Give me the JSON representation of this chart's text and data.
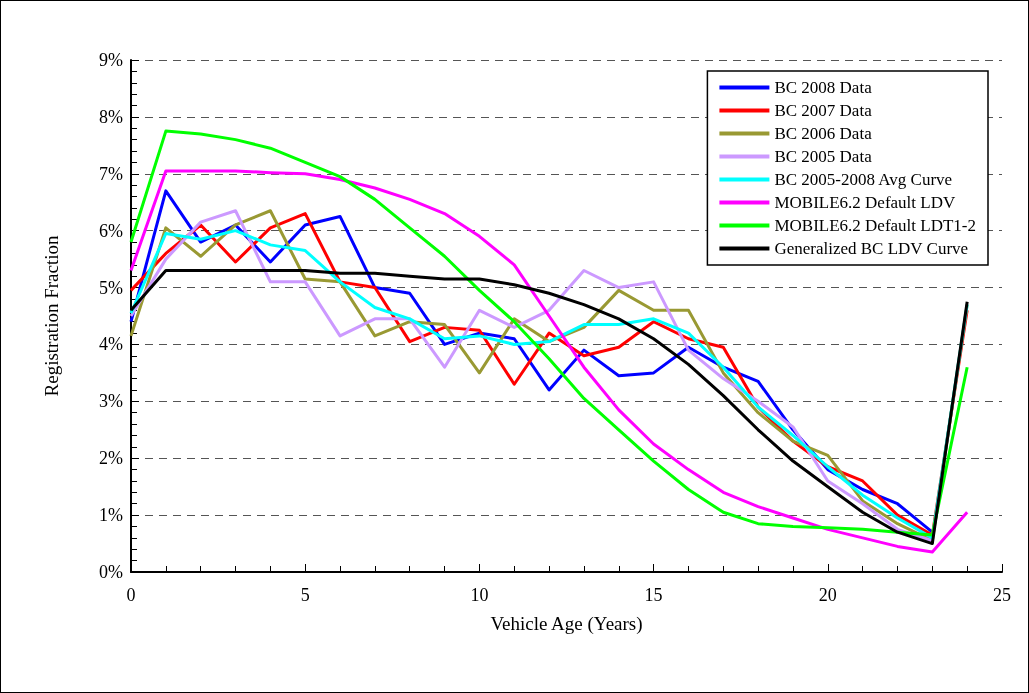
{
  "chart_data": {
    "type": "line",
    "xlabel": "Vehicle Age (Years)",
    "ylabel": "Registration Fraction",
    "x": [
      0,
      1,
      2,
      3,
      4,
      5,
      6,
      7,
      8,
      9,
      10,
      11,
      12,
      13,
      14,
      15,
      16,
      17,
      18,
      19,
      20,
      21,
      22,
      23,
      24
    ],
    "xlim": [
      0,
      25
    ],
    "xticks": [
      0,
      5,
      10,
      15,
      20,
      25
    ],
    "ylim": [
      0,
      9
    ],
    "yticks": [
      {
        "value": 0,
        "label": "0%"
      },
      {
        "value": 1,
        "label": "1%"
      },
      {
        "value": 2,
        "label": "2%"
      },
      {
        "value": 3,
        "label": "3%"
      },
      {
        "value": 4,
        "label": "4%"
      },
      {
        "value": 5,
        "label": "5%"
      },
      {
        "value": 6,
        "label": "6%"
      },
      {
        "value": 7,
        "label": "7%"
      },
      {
        "value": 8,
        "label": "8%"
      },
      {
        "value": 9,
        "label": "9%"
      }
    ],
    "grid": "y",
    "legend": "top right",
    "marker": "none",
    "line_style": "solid",
    "series": [
      {
        "name": "BC 2008 Data",
        "color": "#0000ff",
        "values": [
          4.4,
          6.7,
          5.8,
          6.1,
          5.45,
          6.1,
          6.25,
          5.0,
          4.9,
          4.0,
          4.2,
          4.1,
          3.2,
          3.9,
          3.45,
          3.5,
          3.95,
          3.6,
          3.35,
          2.5,
          1.8,
          1.45,
          1.2,
          0.7,
          null
        ]
      },
      {
        "name": "BC 2007 Data",
        "color": "#ff0000",
        "values": [
          4.95,
          5.6,
          6.1,
          5.45,
          6.05,
          6.3,
          5.1,
          5.0,
          4.05,
          4.3,
          4.25,
          3.3,
          4.2,
          3.8,
          3.95,
          4.4,
          4.1,
          3.95,
          2.9,
          2.3,
          1.85,
          1.6,
          1.0,
          0.65,
          4.6
        ]
      },
      {
        "name": "BC 2006 Data",
        "color": "#999933",
        "values": [
          4.15,
          6.05,
          5.55,
          6.1,
          6.35,
          5.15,
          5.1,
          4.15,
          4.4,
          4.35,
          3.5,
          4.45,
          4.05,
          4.3,
          4.95,
          4.6,
          4.6,
          3.5,
          2.8,
          2.3,
          2.05,
          1.25,
          0.85,
          0.55,
          4.7
        ]
      },
      {
        "name": "BC 2005 Data",
        "color": "#cc99ff",
        "values": [
          4.5,
          5.5,
          6.15,
          6.35,
          5.1,
          5.1,
          4.15,
          4.45,
          4.45,
          3.6,
          4.6,
          4.3,
          4.6,
          5.3,
          5.0,
          5.1,
          3.9,
          3.4,
          3.0,
          2.55,
          1.6,
          1.2,
          0.75,
          0.55,
          null
        ]
      },
      {
        "name": "BC 2005-2008 Avg Curve",
        "color": "#00ffff",
        "values": [
          4.55,
          5.95,
          5.85,
          6.0,
          5.75,
          5.65,
          5.1,
          4.65,
          4.45,
          4.1,
          4.15,
          4.0,
          4.05,
          4.35,
          4.35,
          4.45,
          4.2,
          3.6,
          2.9,
          2.4,
          1.85,
          1.35,
          0.95,
          0.6,
          4.7
        ]
      },
      {
        "name": "MOBILE6.2 Default LDV",
        "color": "#ff00ff",
        "values": [
          5.3,
          7.05,
          7.05,
          7.05,
          7.02,
          7.0,
          6.9,
          6.75,
          6.55,
          6.3,
          5.9,
          5.4,
          4.5,
          3.6,
          2.85,
          2.25,
          1.8,
          1.4,
          1.15,
          0.95,
          0.75,
          0.6,
          0.45,
          0.35,
          1.05
        ]
      },
      {
        "name": "MOBILE6.2 Default LDT1-2",
        "color": "#00ff00",
        "values": [
          5.8,
          7.75,
          7.7,
          7.6,
          7.45,
          7.2,
          6.95,
          6.55,
          6.05,
          5.55,
          4.95,
          4.4,
          3.75,
          3.05,
          2.5,
          1.95,
          1.45,
          1.05,
          0.85,
          0.8,
          0.78,
          0.75,
          0.7,
          0.65,
          3.6
        ]
      },
      {
        "name": "Generalized BC LDV Curve",
        "color": "#000000",
        "values": [
          4.6,
          5.3,
          5.3,
          5.3,
          5.3,
          5.3,
          5.25,
          5.25,
          5.2,
          5.15,
          5.15,
          5.05,
          4.9,
          4.7,
          4.45,
          4.1,
          3.65,
          3.1,
          2.5,
          1.95,
          1.5,
          1.05,
          0.7,
          0.5,
          4.75
        ]
      }
    ]
  }
}
